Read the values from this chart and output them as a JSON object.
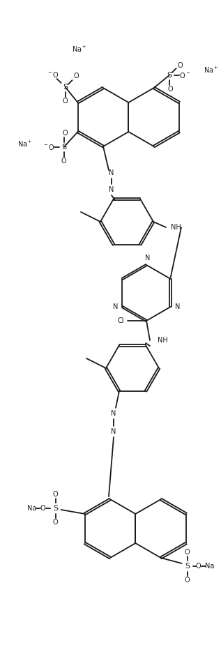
{
  "figsize": [
    3.17,
    9.58
  ],
  "dpi": 100,
  "bg_color": "#ffffff",
  "lc": "#1a1a1a",
  "lw": 1.3,
  "fs": 7.0,
  "xlim": [
    0,
    317
  ],
  "ylim": [
    0,
    958
  ]
}
